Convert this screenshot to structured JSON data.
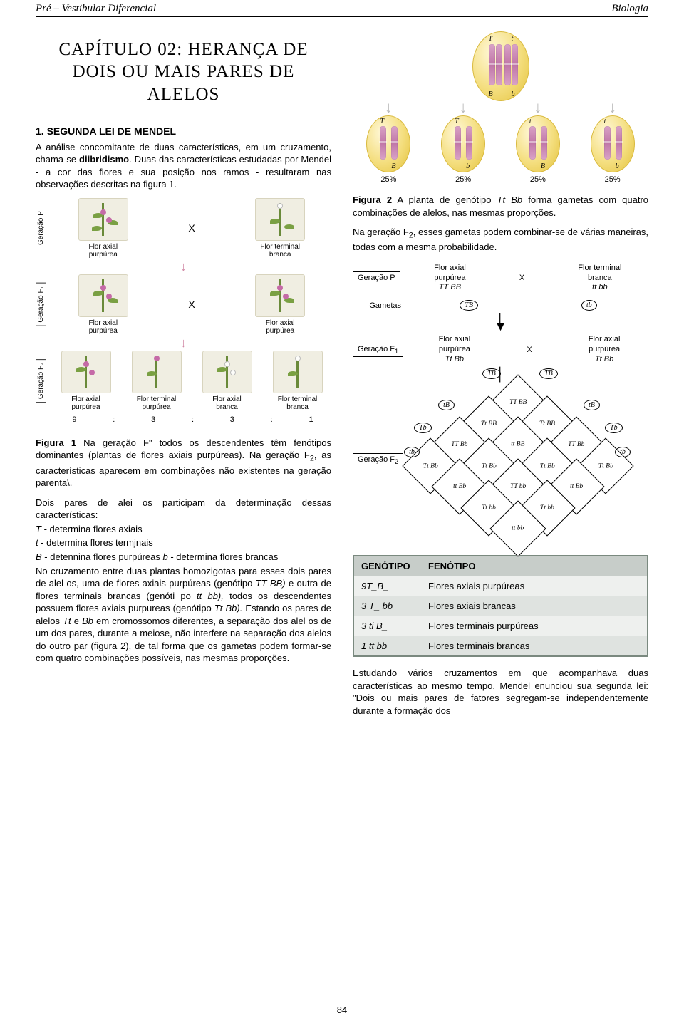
{
  "header": {
    "left": "Pré – Vestibular Diferencial",
    "right": "Biologia"
  },
  "title": "CAPÍTULO 02: HERANÇA DE DOIS OU MAIS PARES DE ALELOS",
  "section1_heading": "1. SEGUNDA LEI DE MENDEL",
  "p1": "A análise concomitante de duas características, em um cruzamento, chama-se diibridismo. Duas das características estudadas por Mendel - a cor das flores e sua posição nos ramos - resultaram nas observações descritas na figura 1.",
  "fig1": {
    "generations": [
      "Geração P",
      "Geração F₁",
      "Geração F₂"
    ],
    "labels": {
      "axial_purpura": "Flor axial\npurpúrea",
      "terminal_branca": "Flor terminal\nbranca",
      "axial_branca": "Flor axial\nbranca",
      "terminal_purpura": "Flor terminal\npurpúrea"
    },
    "cross_symbol": "X",
    "f2_ratio": [
      "9",
      "3",
      "3",
      "1"
    ]
  },
  "fig1_caption": "Figura 1 Na geração F\" todos os descendentes têm fenótipos dominantes (plantas de flores axiais purpúreas). Na geração F₂, as características aparecem em combinações não existentes na geração parenta\\.",
  "p2": "Dois pares de alei os participam da determinação dessas características:",
  "p3_lines": [
    "T - determina flores axiais",
    "t - determina flores termjnais",
    "B - detennina flores purpúreas b - determina flores brancas"
  ],
  "p4": "No cruzamento entre duas plantas homozigotas para esses dois pares de alel os, uma de flores axiais purpúreas (genótipo TT BB) e outra de flores terminais brancas (genóti po tt bb), todos os descendentes possuem flores axiais purpureas (genótipo Tt Bb). Estando os pares de alelos Tt e Bb em cromossomos diferentes, a separação dos alel os de um dos pares, durante a meiose, não interfere na separação dos alelos do outro par (figura 2), de tal forma que os gametas podem formar-se com quatro combinações possíveis, nas mesmas proporções.",
  "fig2": {
    "parent_alleles": {
      "topL": "T",
      "topR": "t",
      "botL": "B",
      "botR": "b"
    },
    "gametes": [
      {
        "top": "T",
        "bot": "B",
        "pct": "25%"
      },
      {
        "top": "T",
        "bot": "b",
        "pct": "25%"
      },
      {
        "top": "t",
        "bot": "B",
        "pct": "25%"
      },
      {
        "top": "t",
        "bot": "b",
        "pct": "25%"
      }
    ]
  },
  "fig2_caption": "Figura 2 A planta de genótipo Tt Bb forma gametas com quatro combinações de alelos, nas mesmas proporções.",
  "p5": "Na geração F₂, esses gametas podem combinar-se de várias maneiras, todas com a mesma probabilidade.",
  "cross_diag": {
    "genP_label": "Geração P",
    "genF1_label": "Geração F₁",
    "genF2_label": "Geração F₂",
    "gametas_label": "Gametas",
    "p_left": {
      "l1": "Flor axial",
      "l2": "purpúrea",
      "l3": "TT BB"
    },
    "p_right": {
      "l1": "Flor terminal",
      "l2": "branca",
      "l3": "tt bb"
    },
    "p_gam_left": "TB",
    "p_gam_right": "tb",
    "f1_left": {
      "l1": "Flor axial",
      "l2": "purpúrea",
      "l3": "Tt Bb"
    },
    "f1_right": {
      "l1": "Flor axial",
      "l2": "purpúrea",
      "l3": "Tt Bb"
    },
    "cross": "X",
    "punnett": {
      "top_gametes": [
        "TB",
        "TB"
      ],
      "left_gametes": [
        "tB",
        "Tb",
        "tb"
      ],
      "right_gametes": [
        "tB",
        "Tb",
        "tb"
      ],
      "cells": [
        [
          "TT BB"
        ],
        [
          "Tt BB",
          "Tt BB"
        ],
        [
          "TT Bb",
          "tt BB",
          "TT Bb"
        ],
        [
          "Tt Bb",
          "Tt Bb",
          "Tt Bb",
          "Tt Bb"
        ],
        [
          "tt Bb",
          "TT bb",
          "tt Bb"
        ],
        [
          "Tt bb",
          "Tt bb"
        ],
        [
          "tt bb"
        ]
      ]
    }
  },
  "table": {
    "headers": [
      "GENÓTIPO",
      "FENÓTIPO"
    ],
    "rows": [
      {
        "g": "9T_B_",
        "f": "Flores axiais purpúreas"
      },
      {
        "g": "3 T_ bb",
        "f": "Flores axiais brancas"
      },
      {
        "g": "3 ti B_",
        "f": "Flores terminais purpúreas"
      },
      {
        "g": "1 tt bb",
        "f": "Flores terminais brancas"
      }
    ]
  },
  "p6": "Estudando vários cruzamentos em que acompanhava duas características ao mesmo tempo, Mendel enunciou sua segunda lei: \"Dois ou mais pares de fatores segregam-se independentemente durante a formação dos",
  "page_number": "84",
  "colors": {
    "cell_fill_light": "#fff8d8",
    "cell_fill_mid": "#f4de7e",
    "cell_fill_dark": "#e7c84a",
    "chrom": "#c076a7",
    "purple_flower": "#c56aa7",
    "stem": "#6a8a3a",
    "table_border": "#7a897f",
    "table_hd": "#c7cdc9",
    "table_r0": "#eef0ee",
    "table_r1": "#dfe3e0"
  }
}
